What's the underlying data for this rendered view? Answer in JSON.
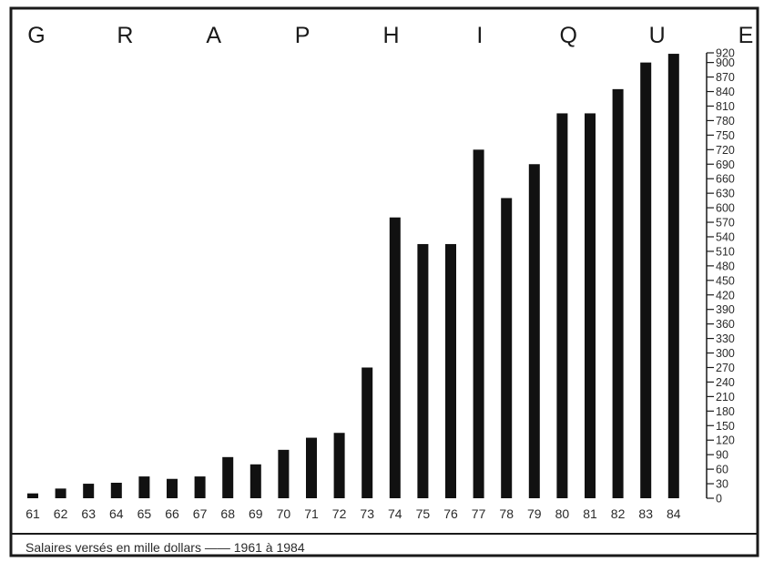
{
  "chart_data": {
    "type": "bar",
    "title": "GRAPHIQUE",
    "caption": "Salaires versés en mille dollars —— 1961 à 1984",
    "categories": [
      "61",
      "62",
      "63",
      "64",
      "65",
      "66",
      "67",
      "68",
      "69",
      "70",
      "71",
      "72",
      "73",
      "74",
      "75",
      "76",
      "77",
      "78",
      "79",
      "80",
      "81",
      "82",
      "83",
      "84"
    ],
    "values": [
      10,
      20,
      30,
      32,
      45,
      40,
      45,
      85,
      70,
      100,
      125,
      135,
      270,
      580,
      525,
      525,
      720,
      620,
      690,
      795,
      795,
      845,
      900,
      918
    ],
    "ylim": [
      0,
      920
    ],
    "yticks": [
      0,
      30,
      60,
      90,
      120,
      150,
      180,
      210,
      240,
      270,
      300,
      330,
      360,
      390,
      420,
      450,
      480,
      510,
      540,
      570,
      600,
      630,
      660,
      690,
      720,
      750,
      780,
      810,
      840,
      870,
      900,
      920
    ],
    "ytick_labels": [
      "0",
      "30",
      "60",
      "90",
      "120",
      "150",
      "180",
      "210",
      "240",
      "270",
      "300",
      "330",
      "360",
      "390",
      "420",
      "450",
      "480",
      "510",
      "540",
      "570",
      "600",
      "630",
      "660",
      "690",
      "720",
      "750",
      "780",
      "810",
      "840",
      "870",
      "900",
      "920"
    ],
    "y_axis_side": "right",
    "grid": false,
    "legend": "none",
    "colors": {
      "bars": "#111111",
      "frame": "#1a1a1a",
      "text": "#2a2a2a"
    }
  }
}
